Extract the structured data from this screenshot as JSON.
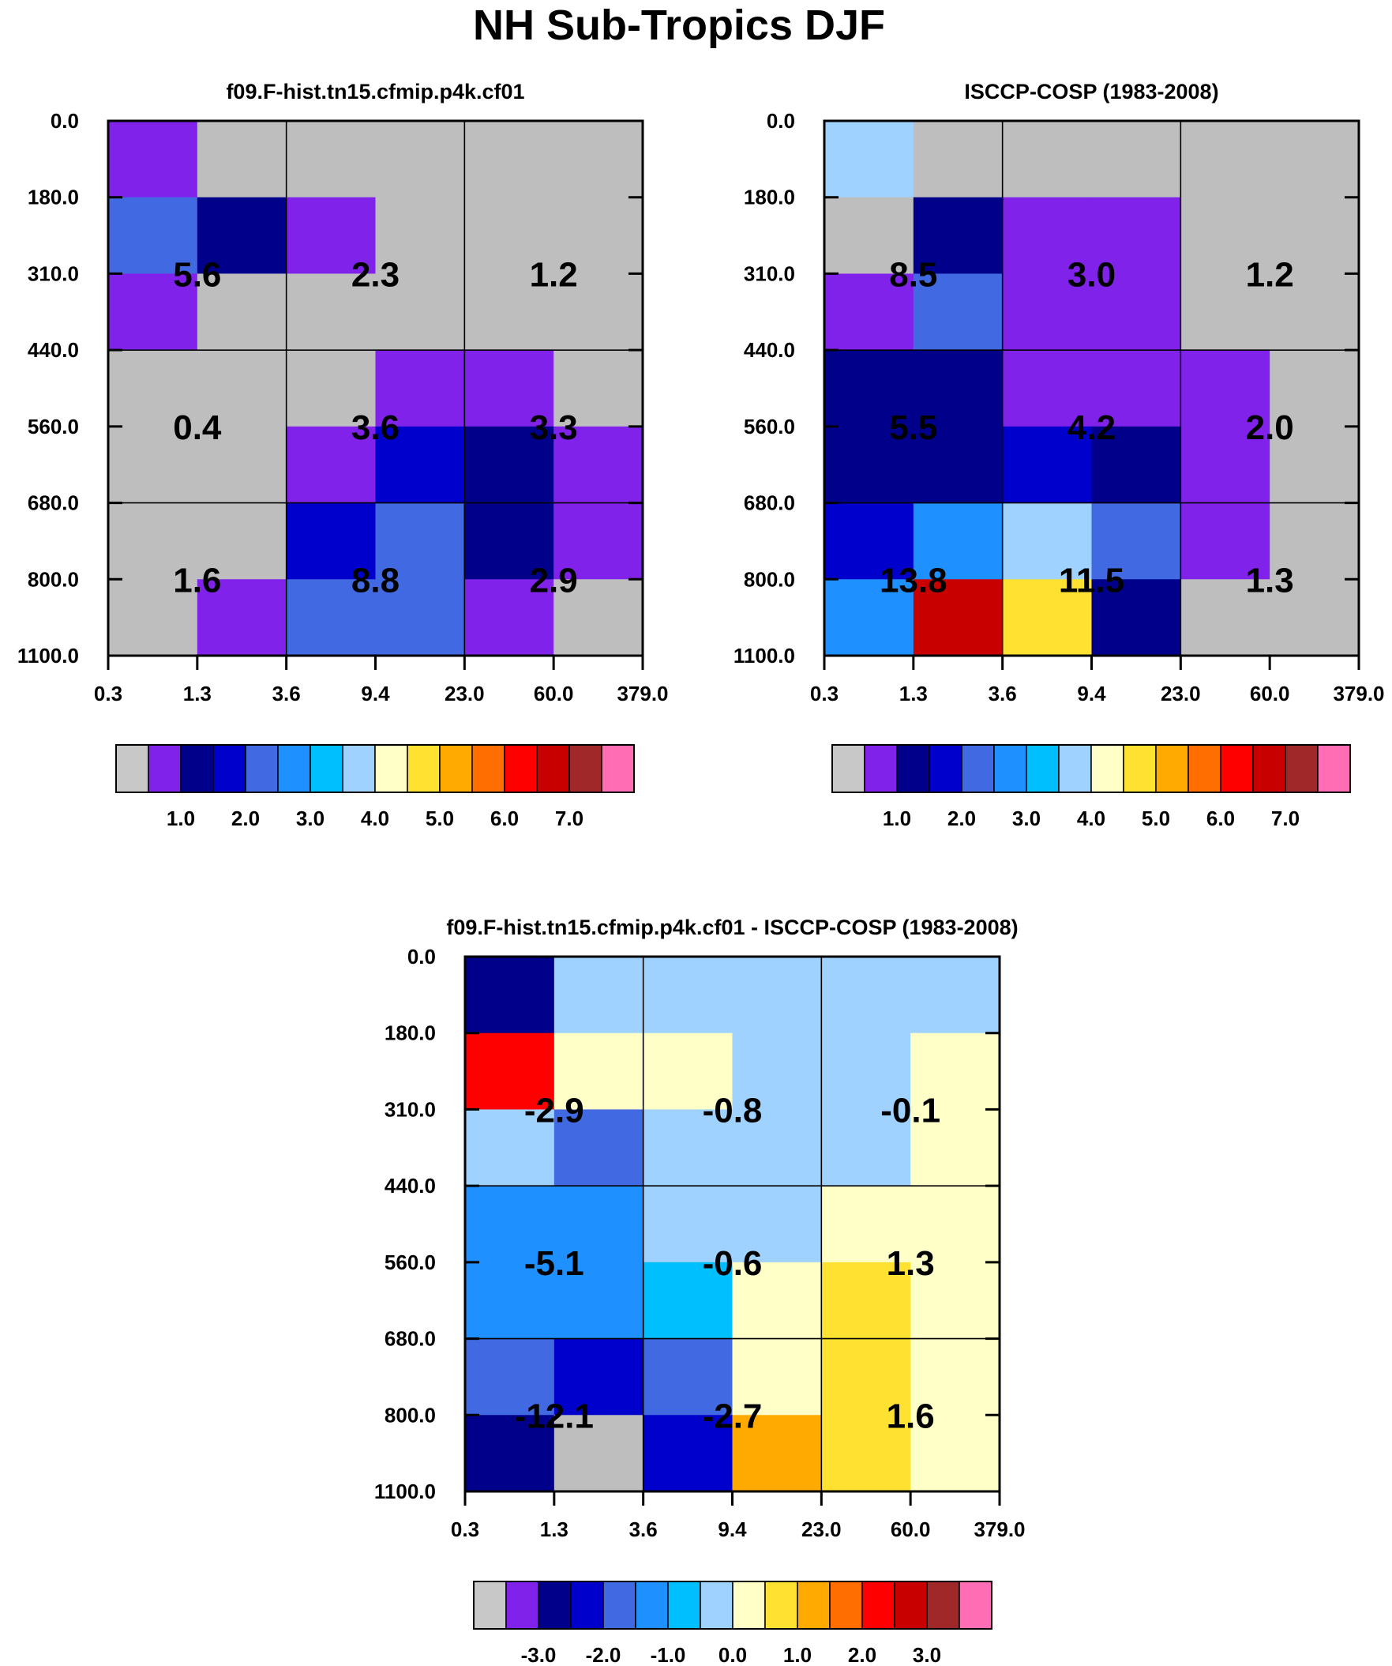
{
  "page_title": "NH Sub-Tropics DJF",
  "chart_data": [
    {
      "type": "heatmap",
      "title": "f09.F-hist.tn15.cfmip.p4k.cf01",
      "x_tick_labels": [
        "0.3",
        "1.3",
        "3.6",
        "9.4",
        "23.0",
        "60.0",
        "379.0"
      ],
      "y_tick_labels": [
        "0.0",
        "180.0",
        "310.0",
        "440.0",
        "560.0",
        "680.0",
        "800.0",
        "1100.0"
      ],
      "cell_colors": [
        [
          "#8122ea",
          "#bebebe",
          "#bebebe",
          "#bebebe",
          "#bebebe",
          "#bebebe"
        ],
        [
          "#4169e1",
          "#00008b",
          "#8122ea",
          "#bebebe",
          "#bebebe",
          "#bebebe"
        ],
        [
          "#8122ea",
          "#bebebe",
          "#bebebe",
          "#bebebe",
          "#bebebe",
          "#bebebe"
        ],
        [
          "#bebebe",
          "#bebebe",
          "#bebebe",
          "#8122ea",
          "#8122ea",
          "#bebebe"
        ],
        [
          "#bebebe",
          "#bebebe",
          "#8122ea",
          "#0000cd",
          "#00008b",
          "#8122ea"
        ],
        [
          "#bebebe",
          "#bebebe",
          "#0000cd",
          "#4169e1",
          "#00008b",
          "#8122ea"
        ],
        [
          "#bebebe",
          "#8122ea",
          "#4169e1",
          "#4169e1",
          "#8122ea",
          "#bebebe"
        ]
      ],
      "group_values": [
        [
          "5.6",
          "2.3",
          "1.2"
        ],
        [
          "0.4",
          "3.6",
          "3.3"
        ],
        [
          "1.6",
          "8.8",
          "2.9"
        ]
      ],
      "colorbar": {
        "colors": [
          "#c8c8c8",
          "#8122ea",
          "#00008b",
          "#0000cd",
          "#4169e1",
          "#1e90ff",
          "#00bfff",
          "#a0d2ff",
          "#ffffc8",
          "#ffe132",
          "#ffaa00",
          "#ff6e00",
          "#ff0000",
          "#c80000",
          "#a02828",
          "#ff6eb4"
        ],
        "tick_labels": [
          "1.0",
          "2.0",
          "3.0",
          "4.0",
          "5.0",
          "6.0",
          "7.0"
        ]
      }
    },
    {
      "type": "heatmap",
      "title": "ISCCP-COSP (1983-2008)",
      "x_tick_labels": [
        "0.3",
        "1.3",
        "3.6",
        "9.4",
        "23.0",
        "60.0",
        "379.0"
      ],
      "y_tick_labels": [
        "0.0",
        "180.0",
        "310.0",
        "440.0",
        "560.0",
        "680.0",
        "800.0",
        "1100.0"
      ],
      "cell_colors": [
        [
          "#a0d2ff",
          "#bebebe",
          "#bebebe",
          "#bebebe",
          "#bebebe",
          "#bebebe"
        ],
        [
          "#bebebe",
          "#00008b",
          "#8122ea",
          "#8122ea",
          "#bebebe",
          "#bebebe"
        ],
        [
          "#8122ea",
          "#4169e1",
          "#8122ea",
          "#8122ea",
          "#bebebe",
          "#bebebe"
        ],
        [
          "#00008b",
          "#00008b",
          "#8122ea",
          "#8122ea",
          "#8122ea",
          "#bebebe"
        ],
        [
          "#00008b",
          "#00008b",
          "#0000cd",
          "#00008b",
          "#8122ea",
          "#bebebe"
        ],
        [
          "#0000cd",
          "#1e90ff",
          "#a0d2ff",
          "#4169e1",
          "#8122ea",
          "#bebebe"
        ],
        [
          "#1e90ff",
          "#c80000",
          "#ffe132",
          "#00008b",
          "#bebebe",
          "#bebebe"
        ]
      ],
      "group_values": [
        [
          "8.5",
          "3.0",
          "1.2"
        ],
        [
          "5.5",
          "4.2",
          "2.0"
        ],
        [
          "13.8",
          "11.5",
          "1.3"
        ]
      ],
      "colorbar": {
        "colors": [
          "#c8c8c8",
          "#8122ea",
          "#00008b",
          "#0000cd",
          "#4169e1",
          "#1e90ff",
          "#00bfff",
          "#a0d2ff",
          "#ffffc8",
          "#ffe132",
          "#ffaa00",
          "#ff6e00",
          "#ff0000",
          "#c80000",
          "#a02828",
          "#ff6eb4"
        ],
        "tick_labels": [
          "1.0",
          "2.0",
          "3.0",
          "4.0",
          "5.0",
          "6.0",
          "7.0"
        ]
      }
    },
    {
      "type": "heatmap",
      "title": "f09.F-hist.tn15.cfmip.p4k.cf01 - ISCCP-COSP (1983-2008)",
      "x_tick_labels": [
        "0.3",
        "1.3",
        "3.6",
        "9.4",
        "23.0",
        "60.0",
        "379.0"
      ],
      "y_tick_labels": [
        "0.0",
        "180.0",
        "310.0",
        "440.0",
        "560.0",
        "680.0",
        "800.0",
        "1100.0"
      ],
      "cell_colors": [
        [
          "#00008b",
          "#a0d2ff",
          "#a0d2ff",
          "#a0d2ff",
          "#a0d2ff",
          "#a0d2ff"
        ],
        [
          "#ff0000",
          "#ffffc8",
          "#ffffc8",
          "#a0d2ff",
          "#a0d2ff",
          "#ffffc8"
        ],
        [
          "#a0d2ff",
          "#4169e1",
          "#a0d2ff",
          "#a0d2ff",
          "#a0d2ff",
          "#ffffc8"
        ],
        [
          "#1e90ff",
          "#1e90ff",
          "#a0d2ff",
          "#a0d2ff",
          "#ffffc8",
          "#ffffc8"
        ],
        [
          "#1e90ff",
          "#1e90ff",
          "#00bfff",
          "#ffffc8",
          "#ffe132",
          "#ffffc8"
        ],
        [
          "#4169e1",
          "#0000cd",
          "#4169e1",
          "#ffffc8",
          "#ffe132",
          "#ffffc8"
        ],
        [
          "#00008b",
          "#bebebe",
          "#0000cd",
          "#ffaa00",
          "#ffe132",
          "#ffffc8"
        ]
      ],
      "group_values": [
        [
          "-2.9",
          "-0.8",
          "-0.1"
        ],
        [
          "-5.1",
          "-0.6",
          "1.3"
        ],
        [
          "-12.1",
          "-2.7",
          "1.6"
        ]
      ],
      "colorbar": {
        "colors": [
          "#c8c8c8",
          "#8122ea",
          "#00008b",
          "#0000cd",
          "#4169e1",
          "#1e90ff",
          "#00bfff",
          "#a0d2ff",
          "#ffffc8",
          "#ffe132",
          "#ffaa00",
          "#ff6e00",
          "#ff0000",
          "#c80000",
          "#a02828",
          "#ff6eb4"
        ],
        "tick_labels": [
          "-3.0",
          "-2.0",
          "-1.0",
          "0.0",
          "1.0",
          "2.0",
          "3.0"
        ]
      }
    }
  ]
}
